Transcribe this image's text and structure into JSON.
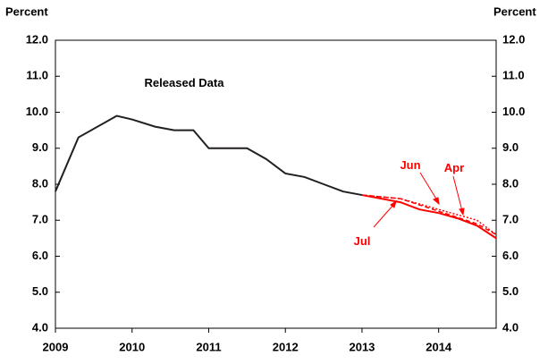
{
  "chart_data": {
    "type": "line",
    "ylabel": "Percent",
    "xlim": [
      2009,
      2014.75
    ],
    "xticks": [
      2009,
      2010,
      2011,
      2012,
      2013,
      2014
    ],
    "ylim": [
      4,
      12
    ],
    "yticks": [
      {
        "value": 4,
        "label": "4.0"
      },
      {
        "value": 5,
        "label": "5.0"
      },
      {
        "value": 6,
        "label": "6.0"
      },
      {
        "value": 7,
        "label": "7.0"
      },
      {
        "value": 8,
        "label": "8.0"
      },
      {
        "value": 9,
        "label": "9.0"
      },
      {
        "value": 10,
        "label": "10.0"
      },
      {
        "value": 11,
        "label": "11.0"
      },
      {
        "value": 12,
        "label": "12.0"
      }
    ],
    "series": [
      {
        "name": "Released Data",
        "color": "#231f20",
        "style": "solid",
        "x": [
          2009.0,
          2009.3,
          2009.8,
          2010.0,
          2010.3,
          2010.55,
          2010.8,
          2011.0,
          2011.25,
          2011.5,
          2011.75,
          2012.0,
          2012.25,
          2012.5,
          2012.75,
          2013.0
        ],
        "values": [
          7.8,
          9.3,
          9.9,
          9.8,
          9.6,
          9.5,
          9.5,
          9.0,
          9.0,
          9.0,
          8.7,
          8.3,
          8.2,
          8.0,
          7.8,
          7.7
        ]
      },
      {
        "name": "Jul",
        "color": "#ff0000",
        "style": "solid",
        "x": [
          2013.0,
          2013.5,
          2013.75,
          2014.0,
          2014.25,
          2014.5,
          2014.75
        ],
        "values": [
          7.7,
          7.5,
          7.3,
          7.2,
          7.05,
          6.85,
          6.5
        ]
      },
      {
        "name": "Jun",
        "color": "#ff0000",
        "style": "dashed",
        "x": [
          2013.0,
          2013.5,
          2014.0,
          2014.5,
          2014.75
        ],
        "values": [
          7.7,
          7.6,
          7.25,
          6.9,
          6.6
        ]
      },
      {
        "name": "Apr",
        "color": "#ff0000",
        "style": "dotted",
        "x": [
          2013.0,
          2013.5,
          2014.0,
          2014.5,
          2014.75
        ],
        "values": [
          7.7,
          7.6,
          7.3,
          7.0,
          6.6
        ]
      }
    ]
  }
}
